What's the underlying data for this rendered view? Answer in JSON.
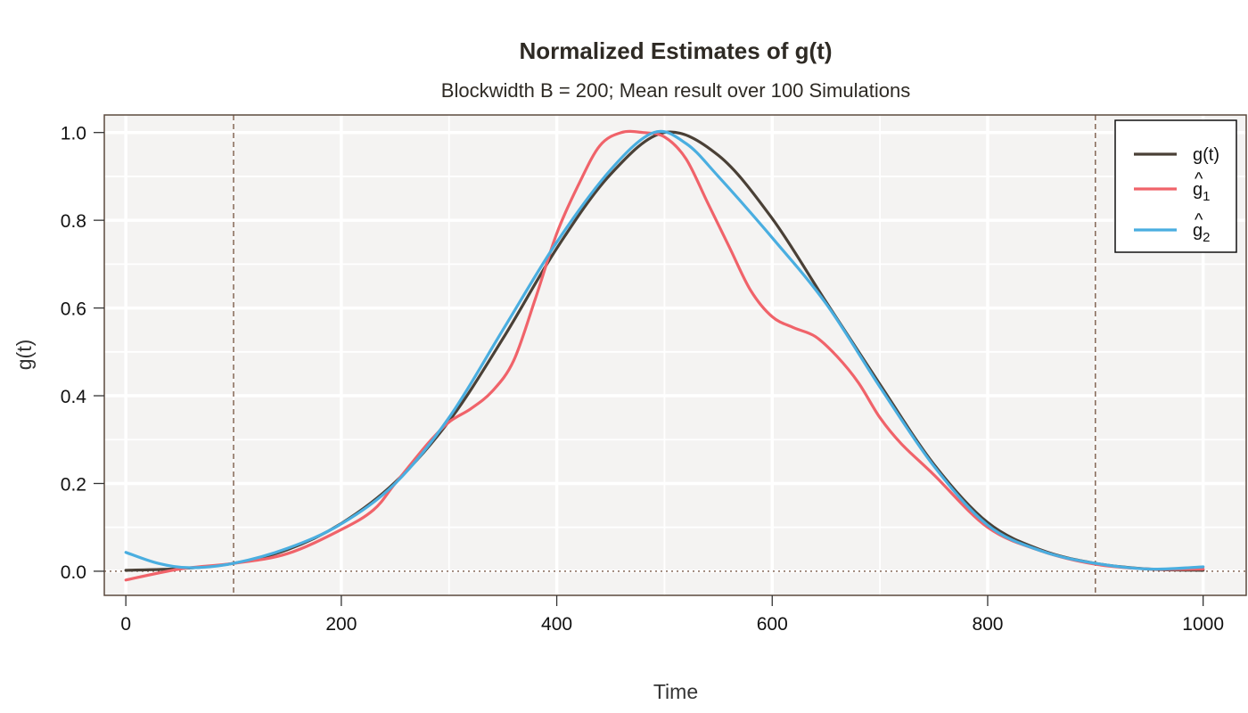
{
  "chart_data": {
    "type": "line",
    "title": "Normalized Estimates of g(t)",
    "subtitle": "Blockwidth B = 200; Mean result over 100 Simulations",
    "xlabel": "Time",
    "ylabel": "g(t)",
    "xlim": [
      -20,
      1040
    ],
    "ylim": [
      -0.055,
      1.04
    ],
    "xticks": [
      0,
      200,
      400,
      600,
      800,
      1000
    ],
    "yticks": [
      0.0,
      0.2,
      0.4,
      0.6,
      0.8,
      1.0
    ],
    "ytick_labels": [
      "0.0",
      "0.2",
      "0.4",
      "0.6",
      "0.8",
      "1.0"
    ],
    "grid": true,
    "vlines": [
      100,
      900
    ],
    "hline": 0,
    "legend_position": "top-right",
    "legend": [
      {
        "label": "g(t)",
        "color": "#4a4036"
      },
      {
        "label": "g",
        "sub": "1",
        "hat": true,
        "color": "#f0636a"
      },
      {
        "label": "g",
        "sub": "2",
        "hat": true,
        "color": "#4aaee0"
      }
    ],
    "colors": {
      "panel": "#f4f3f2",
      "grid": "#ffffff",
      "frame": "#5b4a3e",
      "refline": "#7a5a48"
    },
    "series": [
      {
        "name": "g(t)",
        "color": "#4a4036",
        "x": [
          0,
          50,
          100,
          150,
          200,
          250,
          300,
          350,
          400,
          450,
          500,
          550,
          600,
          650,
          700,
          750,
          800,
          850,
          900,
          950,
          1000
        ],
        "y": [
          0.002,
          0.006,
          0.018,
          0.049,
          0.109,
          0.203,
          0.342,
          0.53,
          0.736,
          0.905,
          1.0,
          0.948,
          0.804,
          0.614,
          0.426,
          0.244,
          0.111,
          0.048,
          0.018,
          0.005,
          0.002
        ]
      },
      {
        "name": "g_1 hat",
        "color": "#f0636a",
        "x": [
          0,
          50,
          100,
          150,
          200,
          230,
          250,
          280,
          300,
          320,
          340,
          360,
          380,
          400,
          420,
          440,
          460,
          480,
          500,
          520,
          540,
          560,
          580,
          600,
          620,
          640,
          660,
          680,
          700,
          720,
          750,
          800,
          850,
          900,
          950,
          1000
        ],
        "y": [
          -0.02,
          0.005,
          0.018,
          0.04,
          0.095,
          0.14,
          0.2,
          0.29,
          0.34,
          0.37,
          0.41,
          0.48,
          0.62,
          0.77,
          0.88,
          0.97,
          1.0,
          1.0,
          0.99,
          0.94,
          0.84,
          0.74,
          0.64,
          0.58,
          0.555,
          0.535,
          0.49,
          0.43,
          0.35,
          0.29,
          0.22,
          0.1,
          0.046,
          0.016,
          0.005,
          0.005
        ]
      },
      {
        "name": "g_2 hat",
        "color": "#4aaee0",
        "x": [
          0,
          30,
          60,
          100,
          150,
          200,
          250,
          300,
          350,
          400,
          450,
          490,
          520,
          550,
          600,
          650,
          700,
          750,
          800,
          850,
          900,
          950,
          1000
        ],
        "y": [
          0.043,
          0.018,
          0.008,
          0.018,
          0.052,
          0.108,
          0.2,
          0.35,
          0.55,
          0.75,
          0.915,
          1.0,
          0.975,
          0.9,
          0.76,
          0.61,
          0.42,
          0.24,
          0.105,
          0.046,
          0.018,
          0.005,
          0.01
        ]
      }
    ]
  }
}
